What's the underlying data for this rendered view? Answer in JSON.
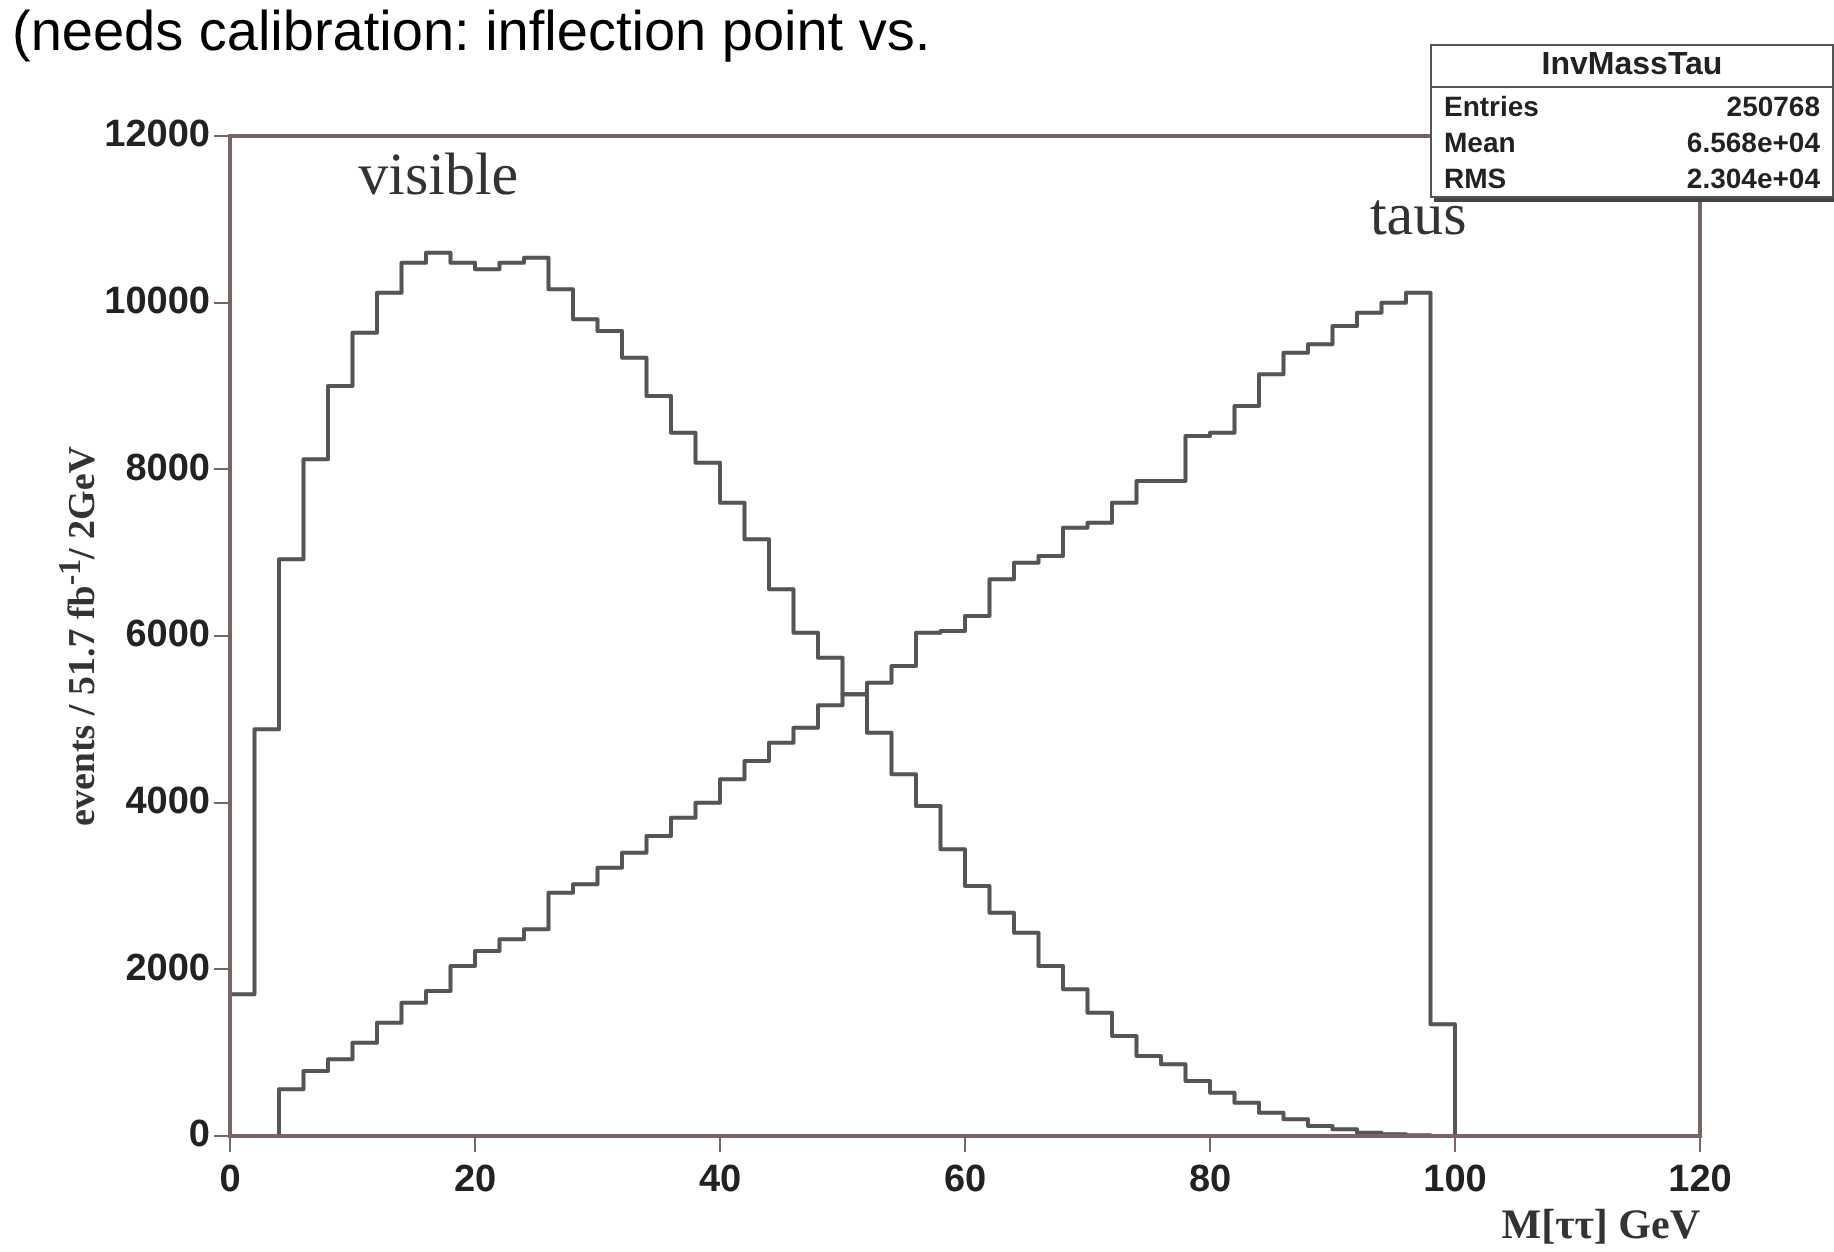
{
  "chart_data": {
    "type": "histogram",
    "title": "(needs calibration: inflection point vs.",
    "xlabel": "M[ττ] GeV",
    "ylabel": "events / 51.7 fb$^{-1}$/ 2GeV",
    "bins": [
      0,
      2,
      4,
      6,
      8,
      10,
      12,
      14,
      16,
      18,
      20,
      22,
      24,
      26,
      28,
      30,
      32,
      34,
      36,
      38,
      40,
      42,
      44,
      46,
      48,
      50,
      52,
      54,
      56,
      58,
      60,
      62,
      64,
      66,
      68,
      70,
      72,
      74,
      76,
      78,
      80,
      82,
      84,
      86,
      88,
      90,
      92,
      94,
      96,
      98,
      100
    ],
    "series": [
      {
        "name": "visible",
        "color": "#555555",
        "values": [
          1700,
          4880,
          6920,
          8120,
          9000,
          9640,
          10120,
          10480,
          10600,
          10480,
          10400,
          10480,
          10540,
          10160,
          9800,
          9660,
          9340,
          8880,
          8440,
          8080,
          7600,
          7160,
          6560,
          6040,
          5740,
          5300,
          4840,
          4340,
          3960,
          3440,
          3000,
          2680,
          2440,
          2040,
          1760,
          1480,
          1200,
          960,
          860,
          660,
          520,
          400,
          280,
          200,
          120,
          80,
          40,
          20,
          10,
          0
        ]
      },
      {
        "name": "taus",
        "color": "#555555",
        "values": [
          0,
          0,
          560,
          780,
          920,
          1120,
          1360,
          1600,
          1740,
          2040,
          2220,
          2360,
          2480,
          2920,
          3020,
          3220,
          3400,
          3600,
          3820,
          4000,
          4280,
          4500,
          4720,
          4900,
          5170,
          5300,
          5440,
          5640,
          6040,
          6060,
          6240,
          6680,
          6880,
          6960,
          7300,
          7360,
          7600,
          7860,
          7860,
          8400,
          8440,
          8760,
          9140,
          9400,
          9500,
          9720,
          9880,
          10000,
          10120,
          1340
        ]
      }
    ],
    "xlim": [
      0,
      120
    ],
    "xticks": [
      0,
      20,
      40,
      60,
      80,
      100,
      120
    ],
    "ylim": [
      0,
      12000
    ],
    "yticks": [
      0,
      2000,
      4000,
      6000,
      8000,
      10000,
      12000
    ],
    "grid": false,
    "legend": false,
    "annotations": [
      "InvMassTau",
      "Entries",
      "250768",
      "Mean",
      "6.568e+04",
      "RMS",
      "2.304e+04"
    ]
  }
}
